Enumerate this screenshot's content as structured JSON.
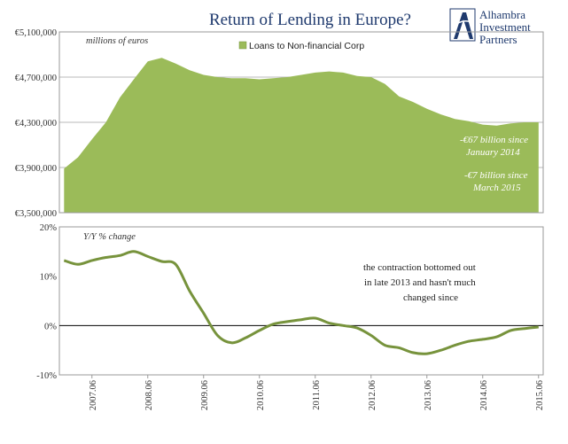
{
  "logo": {
    "lines": [
      "Alhambra",
      "Investment",
      "Partners"
    ],
    "color": "#1f3a6e"
  },
  "chart_data": [
    {
      "type": "area",
      "title": "Return of Lending in Europe?",
      "unit_label": "millions of euros",
      "legend": {
        "entries": [
          "Loans to Non-financial Corp"
        ],
        "placement": "top-center"
      },
      "color": "#9bbb59",
      "ylim": [
        3500000,
        5100000
      ],
      "yticks": [
        "€3,500,000",
        "€3,900,000",
        "€4,300,000",
        "€4,700,000",
        "€5,100,000"
      ],
      "ytick_values": [
        3500000,
        3900000,
        4300000,
        4700000,
        5100000
      ],
      "grid": "horizontal",
      "x": [
        "2006-12",
        "2007-03",
        "2007-06",
        "2007-09",
        "2007-12",
        "2008-03",
        "2008-06",
        "2008-09",
        "2008-12",
        "2009-03",
        "2009-06",
        "2009-09",
        "2009-12",
        "2010-03",
        "2010-06",
        "2010-09",
        "2010-12",
        "2011-03",
        "2011-06",
        "2011-09",
        "2011-12",
        "2012-03",
        "2012-06",
        "2012-09",
        "2012-12",
        "2013-03",
        "2013-06",
        "2013-09",
        "2013-12",
        "2014-03",
        "2014-06",
        "2014-09",
        "2014-12",
        "2015-03",
        "2015-06"
      ],
      "values": [
        3890000,
        3990000,
        4150000,
        4300000,
        4520000,
        4680000,
        4840000,
        4870000,
        4820000,
        4760000,
        4720000,
        4700000,
        4690000,
        4690000,
        4680000,
        4690000,
        4700000,
        4720000,
        4740000,
        4750000,
        4740000,
        4710000,
        4700000,
        4640000,
        4530000,
        4480000,
        4420000,
        4370000,
        4330000,
        4310000,
        4280000,
        4270000,
        4290000,
        4300000,
        4300000
      ],
      "annotations": [
        "-€67 billion since",
        "January 2014",
        "-€7 billion since",
        "March 2015"
      ]
    },
    {
      "type": "line",
      "label": "Y/Y % change",
      "color": "#77933c",
      "ylim": [
        -10,
        20
      ],
      "yticks": [
        "-10%",
        "0%",
        "10%",
        "20%"
      ],
      "ytick_values": [
        -10,
        0,
        10,
        20
      ],
      "categories": [
        "2007.06",
        "2008.06",
        "2009.06",
        "2010.06",
        "2011.06",
        "2012.06",
        "2013.06",
        "2014.06",
        "2015.06"
      ],
      "x": [
        "2006-12",
        "2007-03",
        "2007-06",
        "2007-09",
        "2007-12",
        "2008-03",
        "2008-06",
        "2008-09",
        "2008-12",
        "2009-03",
        "2009-06",
        "2009-09",
        "2009-12",
        "2010-03",
        "2010-06",
        "2010-09",
        "2010-12",
        "2011-03",
        "2011-06",
        "2011-09",
        "2011-12",
        "2012-03",
        "2012-06",
        "2012-09",
        "2012-12",
        "2013-03",
        "2013-06",
        "2013-09",
        "2013-12",
        "2014-03",
        "2014-06",
        "2014-09",
        "2014-12",
        "2015-03",
        "2015-06"
      ],
      "values": [
        13.2,
        12.4,
        13.2,
        13.8,
        14.2,
        15.0,
        14.0,
        13.0,
        12.4,
        7.0,
        2.5,
        -2.0,
        -3.5,
        -2.5,
        -1.0,
        0.3,
        0.8,
        1.2,
        1.5,
        0.5,
        0.0,
        -0.5,
        -2.0,
        -4.0,
        -4.5,
        -5.5,
        -5.7,
        -5.0,
        -4.0,
        -3.2,
        -2.8,
        -2.3,
        -1.0,
        -0.6,
        -0.3
      ],
      "note": [
        "the contraction bottomed out",
        "in late 2013 and hasn't much",
        "changed since"
      ]
    }
  ]
}
